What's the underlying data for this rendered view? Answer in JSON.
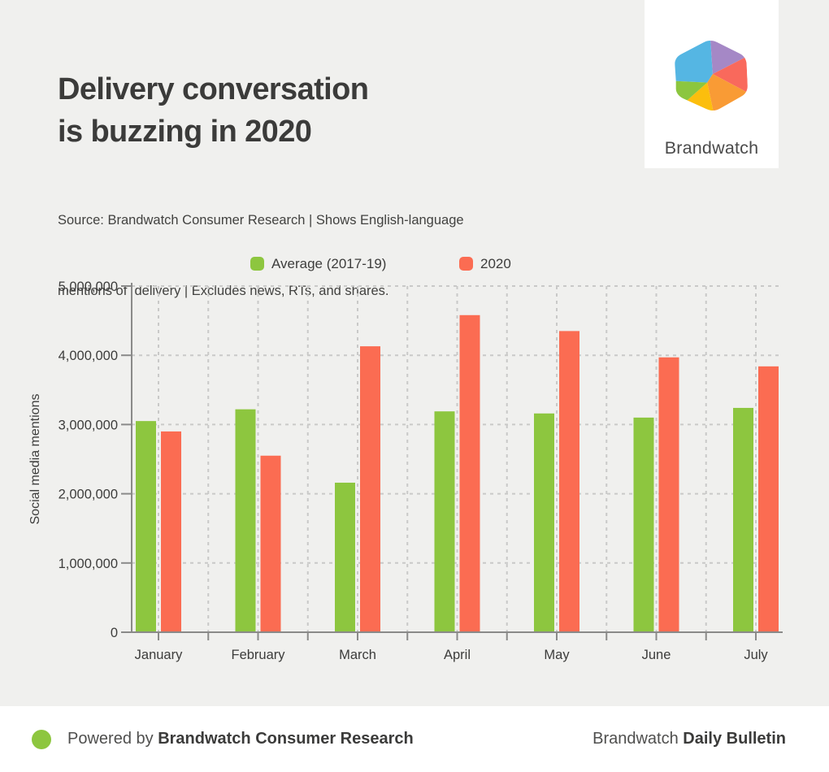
{
  "header": {
    "title_line1": "Delivery conversation",
    "title_line2": "is buzzing in 2020",
    "source_line1": "Source: Brandwatch Consumer Research | Shows English-language",
    "source_line2": "mentions of  delivery | Excludes news, RTs, and shares."
  },
  "logo": {
    "brand_name": "Brandwatch",
    "colors": {
      "blue": "#55b6e3",
      "purple": "#a588c6",
      "coral": "#f9695c",
      "orange": "#f99b35",
      "yellow": "#fcbe0d",
      "green": "#8cc63f"
    }
  },
  "chart_data": {
    "type": "bar",
    "title": "Delivery conversation is buzzing in 2020",
    "categories": [
      "January",
      "February",
      "March",
      "April",
      "May",
      "June",
      "July"
    ],
    "series": [
      {
        "name": "Average (2017-19)",
        "color": "#8dc63f",
        "values": [
          3050000,
          3220000,
          2160000,
          3190000,
          3160000,
          3100000,
          3240000
        ]
      },
      {
        "name": "2020",
        "color": "#fb6c52",
        "values": [
          2900000,
          2550000,
          4130000,
          4580000,
          4350000,
          3970000,
          3840000
        ]
      }
    ],
    "xlabel": "",
    "ylabel": "Social media mentions",
    "ylim": [
      0,
      5000000
    ],
    "ytick_interval": 1000000,
    "ytick_labels": [
      "0",
      "1,000,000",
      "2,000,000",
      "3,000,000",
      "4,000,000",
      "5,000,000"
    ],
    "grid": true,
    "legend_position": "top"
  },
  "footer": {
    "powered_by_prefix": "Powered by",
    "powered_by_brand": "Brandwatch Consumer Research",
    "right_prefix": "Brandwatch",
    "right_bold": "Daily Bulletin",
    "dot_color": "#8dc63f"
  },
  "page_colors": {
    "background": "#f0f0ee",
    "panel": "#ffffff",
    "axis": "#8a8a89",
    "gridline": "#c9c9c8",
    "text": "#3d3d3c"
  }
}
